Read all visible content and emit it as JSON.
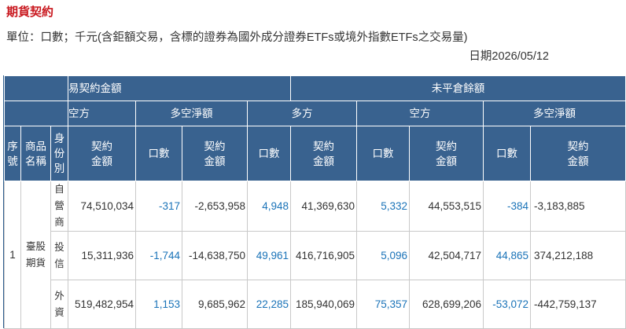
{
  "page": {
    "title": "期貨契約",
    "unit_text": "單位：口數；千元(含鉅額交易，含標的證券為國外成分證券ETFs或境外指數ETFs之交易量)",
    "date_text": "日期2026/05/12"
  },
  "table": {
    "header": {
      "group_trading": "易契約金額",
      "group_open_interest": "未平倉餘額",
      "sub_short": "空方",
      "sub_net": "多空淨額",
      "sub_long": "多方",
      "sub_short2": "空方",
      "sub_net2": "多空淨額",
      "col_seq": "序號",
      "col_product": "商品名稱",
      "col_identity": "身份別",
      "col_amount": "契約金額",
      "col_lots": "口數"
    },
    "row_seq": "1",
    "product": "臺股期貨",
    "rows": [
      {
        "identity": "自營商",
        "short_amount": "74,510,034",
        "net_lots": "-317",
        "net_amount": "-2,653,958",
        "oi_long_lots": "4,948",
        "oi_long_amount": "41,369,630",
        "oi_short_lots": "5,332",
        "oi_short_amount": "44,553,515",
        "oi_net_lots": "-384",
        "oi_net_amount": "-3,183,885"
      },
      {
        "identity": "投信",
        "short_amount": "15,311,936",
        "net_lots": "-1,744",
        "net_amount": "-14,638,750",
        "oi_long_lots": "49,961",
        "oi_long_amount": "416,716,905",
        "oi_short_lots": "5,096",
        "oi_short_amount": "42,504,717",
        "oi_net_lots": "44,865",
        "oi_net_amount": "374,212,188"
      },
      {
        "identity": "外資",
        "short_amount": "519,482,954",
        "net_lots": "1,153",
        "net_amount": "9,685,962",
        "oi_long_lots": "22,285",
        "oi_long_amount": "185,940,069",
        "oi_short_lots": "75,357",
        "oi_short_amount": "628,699,206",
        "oi_net_lots": "-53,072",
        "oi_net_amount": "-442,759,137"
      }
    ]
  }
}
